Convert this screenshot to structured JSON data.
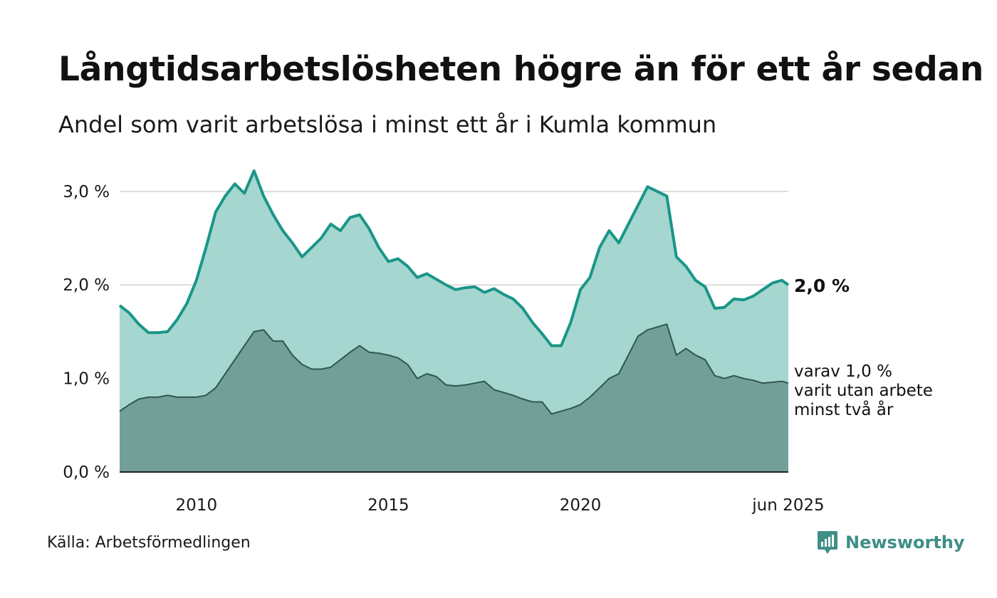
{
  "title": "Långtidsarbetslösheten högre än för ett år sedan",
  "subtitle": "Andel som varit arbetslösa i minst ett år i Kumla kommun",
  "source": "Källa: Arbetsförmedlingen",
  "brand": {
    "name": "Newsworthy",
    "icon": "newsworthy-logo-icon",
    "color": "#3f8f87"
  },
  "chart_data": {
    "type": "area",
    "x_range": [
      "2008-01",
      "2025-06"
    ],
    "ylim": [
      0,
      3.25
    ],
    "y_ticks": [
      {
        "value": 0,
        "label": "0,0 %"
      },
      {
        "value": 1,
        "label": "1,0 %"
      },
      {
        "value": 2,
        "label": "2,0 %"
      },
      {
        "value": 3,
        "label": "3,0 %"
      }
    ],
    "x_ticks": [
      {
        "value": "2010",
        "label": "2010"
      },
      {
        "value": "2015",
        "label": "2015"
      },
      {
        "value": "2020",
        "label": "2020"
      },
      {
        "value": "2025-06",
        "label": "jun 2025"
      }
    ],
    "grid": true,
    "end_label": "2,0 %",
    "note_lines": [
      "varav 1,0 %",
      "varit utan arbete",
      "minst två år"
    ],
    "colors": {
      "total_line": "#1a9688",
      "total_fill": "#a5d6cf",
      "two_year_line": "#2e5750",
      "two_year_fill": "#72a098",
      "grid": "#dddddd",
      "baseline": "#222222"
    },
    "series": [
      {
        "id": "total",
        "points": [
          [
            "2008-01",
            1.78
          ],
          [
            "2008-04",
            1.7
          ],
          [
            "2008-07",
            1.58
          ],
          [
            "2008-10",
            1.49
          ],
          [
            "2009-01",
            1.49
          ],
          [
            "2009-04",
            1.5
          ],
          [
            "2009-07",
            1.63
          ],
          [
            "2009-10",
            1.8
          ],
          [
            "2010-01",
            2.05
          ],
          [
            "2010-04",
            2.4
          ],
          [
            "2010-07",
            2.78
          ],
          [
            "2010-10",
            2.95
          ],
          [
            "2011-01",
            3.08
          ],
          [
            "2011-04",
            2.98
          ],
          [
            "2011-07",
            3.22
          ],
          [
            "2011-10",
            2.95
          ],
          [
            "2012-01",
            2.75
          ],
          [
            "2012-04",
            2.58
          ],
          [
            "2012-07",
            2.45
          ],
          [
            "2012-10",
            2.3
          ],
          [
            "2013-01",
            2.4
          ],
          [
            "2013-04",
            2.5
          ],
          [
            "2013-07",
            2.65
          ],
          [
            "2013-10",
            2.58
          ],
          [
            "2014-01",
            2.72
          ],
          [
            "2014-04",
            2.75
          ],
          [
            "2014-07",
            2.6
          ],
          [
            "2014-10",
            2.4
          ],
          [
            "2015-01",
            2.25
          ],
          [
            "2015-04",
            2.28
          ],
          [
            "2015-07",
            2.2
          ],
          [
            "2015-10",
            2.08
          ],
          [
            "2016-01",
            2.12
          ],
          [
            "2016-04",
            2.06
          ],
          [
            "2016-07",
            2.0
          ],
          [
            "2016-10",
            1.95
          ],
          [
            "2017-01",
            1.97
          ],
          [
            "2017-04",
            1.98
          ],
          [
            "2017-07",
            1.92
          ],
          [
            "2017-10",
            1.96
          ],
          [
            "2018-01",
            1.9
          ],
          [
            "2018-04",
            1.85
          ],
          [
            "2018-07",
            1.75
          ],
          [
            "2018-10",
            1.6
          ],
          [
            "2019-01",
            1.48
          ],
          [
            "2019-04",
            1.35
          ],
          [
            "2019-07",
            1.35
          ],
          [
            "2019-10",
            1.6
          ],
          [
            "2020-01",
            1.95
          ],
          [
            "2020-04",
            2.08
          ],
          [
            "2020-07",
            2.4
          ],
          [
            "2020-10",
            2.58
          ],
          [
            "2021-01",
            2.45
          ],
          [
            "2021-04",
            2.65
          ],
          [
            "2021-07",
            2.85
          ],
          [
            "2021-10",
            3.05
          ],
          [
            "2022-01",
            3.0
          ],
          [
            "2022-04",
            2.95
          ],
          [
            "2022-07",
            2.3
          ],
          [
            "2022-10",
            2.2
          ],
          [
            "2023-01",
            2.05
          ],
          [
            "2023-04",
            1.98
          ],
          [
            "2023-07",
            1.75
          ],
          [
            "2023-10",
            1.76
          ],
          [
            "2024-01",
            1.85
          ],
          [
            "2024-04",
            1.84
          ],
          [
            "2024-07",
            1.88
          ],
          [
            "2024-10",
            1.95
          ],
          [
            "2025-01",
            2.02
          ],
          [
            "2025-04",
            2.05
          ],
          [
            "2025-06",
            2.0
          ]
        ]
      },
      {
        "id": "two_year",
        "points": [
          [
            "2008-01",
            0.65
          ],
          [
            "2008-04",
            0.72
          ],
          [
            "2008-07",
            0.78
          ],
          [
            "2008-10",
            0.8
          ],
          [
            "2009-01",
            0.8
          ],
          [
            "2009-04",
            0.82
          ],
          [
            "2009-07",
            0.8
          ],
          [
            "2009-10",
            0.8
          ],
          [
            "2010-01",
            0.8
          ],
          [
            "2010-04",
            0.82
          ],
          [
            "2010-07",
            0.9
          ],
          [
            "2010-10",
            1.05
          ],
          [
            "2011-01",
            1.2
          ],
          [
            "2011-04",
            1.35
          ],
          [
            "2011-07",
            1.5
          ],
          [
            "2011-10",
            1.52
          ],
          [
            "2012-01",
            1.4
          ],
          [
            "2012-04",
            1.4
          ],
          [
            "2012-07",
            1.25
          ],
          [
            "2012-10",
            1.15
          ],
          [
            "2013-01",
            1.1
          ],
          [
            "2013-04",
            1.1
          ],
          [
            "2013-07",
            1.12
          ],
          [
            "2013-10",
            1.2
          ],
          [
            "2014-01",
            1.28
          ],
          [
            "2014-04",
            1.35
          ],
          [
            "2014-07",
            1.28
          ],
          [
            "2014-10",
            1.27
          ],
          [
            "2015-01",
            1.25
          ],
          [
            "2015-04",
            1.22
          ],
          [
            "2015-07",
            1.15
          ],
          [
            "2015-10",
            1.0
          ],
          [
            "2016-01",
            1.05
          ],
          [
            "2016-04",
            1.02
          ],
          [
            "2016-07",
            0.93
          ],
          [
            "2016-10",
            0.92
          ],
          [
            "2017-01",
            0.93
          ],
          [
            "2017-04",
            0.95
          ],
          [
            "2017-07",
            0.97
          ],
          [
            "2017-10",
            0.88
          ],
          [
            "2018-01",
            0.85
          ],
          [
            "2018-04",
            0.82
          ],
          [
            "2018-07",
            0.78
          ],
          [
            "2018-10",
            0.75
          ],
          [
            "2019-01",
            0.75
          ],
          [
            "2019-04",
            0.62
          ],
          [
            "2019-07",
            0.65
          ],
          [
            "2019-10",
            0.68
          ],
          [
            "2020-01",
            0.72
          ],
          [
            "2020-04",
            0.8
          ],
          [
            "2020-07",
            0.9
          ],
          [
            "2020-10",
            1.0
          ],
          [
            "2021-01",
            1.05
          ],
          [
            "2021-04",
            1.25
          ],
          [
            "2021-07",
            1.45
          ],
          [
            "2021-10",
            1.52
          ],
          [
            "2022-01",
            1.55
          ],
          [
            "2022-04",
            1.58
          ],
          [
            "2022-07",
            1.25
          ],
          [
            "2022-10",
            1.32
          ],
          [
            "2023-01",
            1.25
          ],
          [
            "2023-04",
            1.2
          ],
          [
            "2023-07",
            1.03
          ],
          [
            "2023-10",
            1.0
          ],
          [
            "2024-01",
            1.03
          ],
          [
            "2024-04",
            1.0
          ],
          [
            "2024-07",
            0.98
          ],
          [
            "2024-10",
            0.95
          ],
          [
            "2025-01",
            0.96
          ],
          [
            "2025-04",
            0.97
          ],
          [
            "2025-06",
            0.95
          ]
        ]
      }
    ]
  }
}
